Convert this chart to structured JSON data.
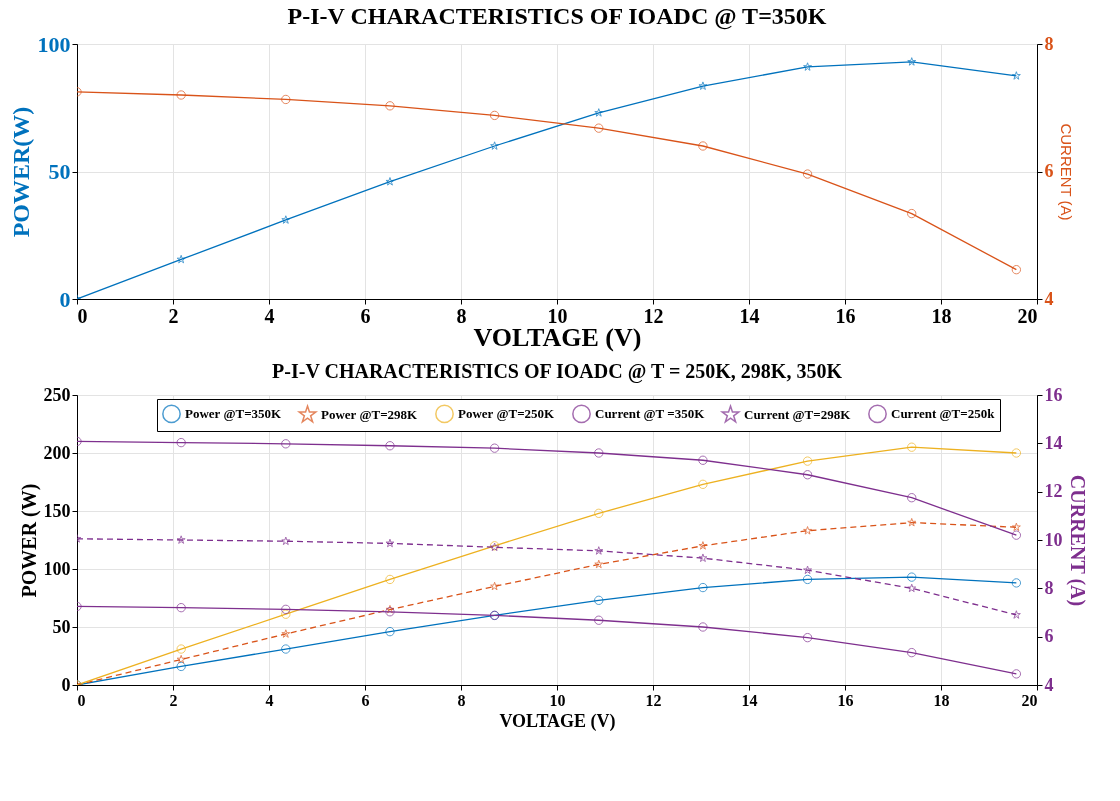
{
  "chart_data": [
    {
      "type": "line",
      "title": "P-I-V CHARACTERISTICS OF IOADC @ T=350K",
      "xlabel": "VOLTAGE (V)",
      "ylabel": "POWER(W)",
      "y2label": "CURRENT (A)",
      "xlim": [
        0,
        20
      ],
      "xticks": [
        0,
        2,
        4,
        6,
        8,
        10,
        12,
        14,
        16,
        18,
        20
      ],
      "ylim": [
        0,
        100
      ],
      "yticks": [
        0,
        50,
        100
      ],
      "y2lim": [
        4,
        8
      ],
      "y2ticks": [
        4,
        6,
        8
      ],
      "grid": true,
      "x": [
        0,
        2.17,
        4.35,
        6.52,
        8.7,
        10.87,
        13.04,
        15.22,
        17.39,
        19.57
      ],
      "series": [
        {
          "color": "#0072bd",
          "marker": "star",
          "line_style": "solid",
          "values": [
            0,
            15.5,
            31,
            46,
            60,
            73,
            83.5,
            91,
            93,
            87.5
          ]
        },
        {
          "color": "#d95319",
          "marker": "circle",
          "line_style": "solid",
          "axis": "y2",
          "values": [
            7.25,
            7.2,
            7.13,
            7.03,
            6.88,
            6.68,
            6.4,
            5.96,
            5.34,
            4.46
          ]
        }
      ]
    },
    {
      "type": "line",
      "title": "P-I-V CHARACTERISTICS OF IOADC @ T = 250K, 298K, 350K",
      "xlabel": "VOLTAGE (V)",
      "ylabel": "POWER (W)",
      "y2label": "CURRENT (A)",
      "xlim": [
        0,
        20
      ],
      "xticks": [
        0,
        2,
        4,
        6,
        8,
        10,
        12,
        14,
        16,
        18,
        20
      ],
      "ylim": [
        0,
        250
      ],
      "yticks": [
        0,
        50,
        100,
        150,
        200,
        250
      ],
      "y2lim": [
        4,
        16
      ],
      "y2ticks": [
        4,
        6,
        8,
        10,
        12,
        14,
        16
      ],
      "grid": true,
      "legend": "top",
      "x": [
        0,
        2.17,
        4.35,
        6.52,
        8.7,
        10.87,
        13.04,
        15.22,
        17.39,
        19.57
      ],
      "series": [
        {
          "name": "Power @T=350K",
          "color": "#0072bd",
          "marker": "circle",
          "line_style": "solid",
          "values": [
            0,
            16,
            31,
            46,
            60,
            73,
            84,
            91,
            93,
            88
          ]
        },
        {
          "name": "Power @T=298K",
          "color": "#d95319",
          "marker": "star",
          "line_style": "dashed",
          "values": [
            0,
            22,
            44,
            65,
            85,
            104,
            120,
            133,
            140,
            136
          ]
        },
        {
          "name": "Power @T=250K",
          "color": "#edb120",
          "marker": "circle",
          "line_style": "solid",
          "values": [
            0,
            31,
            61,
            91,
            120,
            148,
            173,
            193,
            205,
            200
          ]
        },
        {
          "name": "Current @T =350K",
          "color": "#7e2f8e",
          "marker": "circle",
          "line_style": "solid",
          "axis": "y2",
          "values": [
            7.25,
            7.2,
            7.13,
            7.03,
            6.88,
            6.68,
            6.4,
            5.96,
            5.34,
            4.46
          ]
        },
        {
          "name": "Current @T=298K",
          "color": "#7e2f8e",
          "marker": "star",
          "line_style": "dashed",
          "axis": "y2",
          "values": [
            10.05,
            10.0,
            9.95,
            9.86,
            9.7,
            9.55,
            9.25,
            8.75,
            8.0,
            6.9
          ]
        },
        {
          "name": "Current @T=250k",
          "color": "#7e2f8e",
          "marker": "circle",
          "line_style": "solid",
          "axis": "y2",
          "values": [
            14.08,
            14.03,
            13.98,
            13.9,
            13.8,
            13.6,
            13.3,
            12.7,
            11.75,
            10.2
          ]
        }
      ]
    }
  ]
}
